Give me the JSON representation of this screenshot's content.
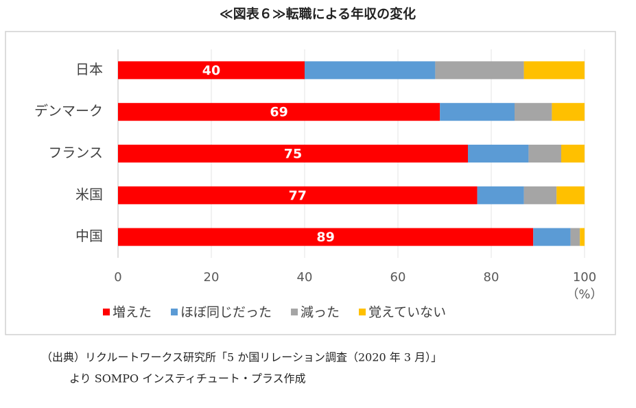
{
  "chart_data": {
    "type": "stacked_barh",
    "title": "≪図表６≫転職による年収の変化",
    "categories": [
      "日本",
      "デンマーク",
      "フランス",
      "米国",
      "中国"
    ],
    "series": [
      {
        "name": "増えた",
        "color": "#ff0000",
        "values": [
          40,
          69,
          75,
          77,
          89
        ],
        "data_labels": true
      },
      {
        "name": "ほぼ同じだった",
        "color": "#5b9bd5",
        "values": [
          28,
          16,
          13,
          10,
          8
        ]
      },
      {
        "name": "減った",
        "color": "#a5a5a5",
        "values": [
          19,
          8,
          7,
          7,
          2
        ]
      },
      {
        "name": "覚えていない",
        "color": "#ffc000",
        "values": [
          13,
          7,
          5,
          6,
          1
        ]
      }
    ],
    "xlim": [
      0,
      100
    ],
    "xticks": [
      0,
      20,
      40,
      60,
      80,
      100
    ],
    "x_unit": "（%）",
    "grid": true,
    "legend": "bottom",
    "notes": [
      "（出典）リクルートワークス研究所「5 か国リレーション調査（2020 年 3 月）」",
      "より SOMPO インスティチュート・プラス作成"
    ]
  }
}
